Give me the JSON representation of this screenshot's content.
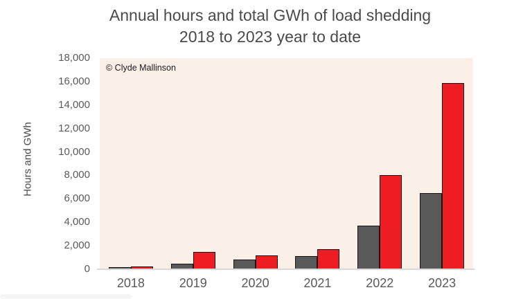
{
  "chart": {
    "title_line1": "Annual hours and total GWh of load shedding",
    "title_line2": "2018 to 2023 year to date",
    "y_axis_title": "Hours and GWh",
    "copyright": "© Clyde Mallinson"
  },
  "chart_data": {
    "type": "bar",
    "title": "Annual hours and total GWh of load shedding 2018 to 2023 year to date",
    "categories": [
      "2018",
      "2019",
      "2020",
      "2021",
      "2022",
      "2023"
    ],
    "series": [
      {
        "name": "Hours",
        "color": "#595959",
        "values": [
          200,
          500,
          800,
          1100,
          3700,
          6500
        ]
      },
      {
        "name": "GWh",
        "color": "#ee1c23",
        "values": [
          250,
          1450,
          1200,
          1700,
          8000,
          15900
        ]
      }
    ],
    "xlabel": "",
    "ylabel": "Hours and GWh",
    "ylim": [
      0,
      18000
    ],
    "ytick_step": 2000,
    "grid": false,
    "legend": "none",
    "plot_bg": "#faf0e8",
    "annotations": [
      "© Clyde Mallinson"
    ]
  }
}
